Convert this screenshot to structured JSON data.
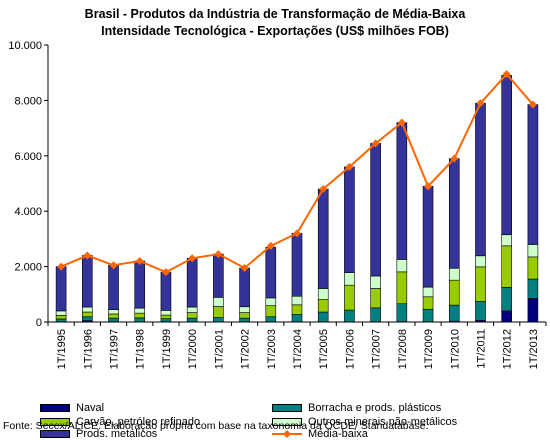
{
  "chart_data": {
    "type": "bar",
    "title": "Brasil - Produtos da Indústria de Transformação de Média-Baixa",
    "subtitle": "Intensidade Tecnológica - Exportações (US$ milhões FOB)",
    "categories": [
      "1T/1995",
      "1T/1996",
      "1T/1997",
      "1T/1998",
      "1T/1999",
      "1T/2000",
      "1T/2001",
      "1T/2002",
      "1T/2003",
      "1T/2004",
      "1T/2005",
      "1T/2006",
      "1T/2007",
      "1T/2008",
      "1T/2009",
      "1T/2010",
      "1T/2011",
      "1T/2012",
      "1T/2013"
    ],
    "ylim": [
      0,
      10000
    ],
    "yticks": [
      "0",
      "2.000",
      "4.000",
      "6.000",
      "8.000",
      "10.000"
    ],
    "yticks_values": [
      0,
      2000,
      4000,
      6000,
      8000,
      10000
    ],
    "grid": false,
    "legend_position": "bottom",
    "series": [
      {
        "name": "Naval",
        "color": "#000080",
        "kind": "bar",
        "values": [
          10,
          50,
          10,
          10,
          10,
          10,
          10,
          10,
          10,
          10,
          10,
          10,
          10,
          10,
          10,
          30,
          60,
          400,
          850
        ]
      },
      {
        "name": "Borracha e prods. plásticos",
        "color": "#008080",
        "kind": "bar",
        "values": [
          100,
          140,
          130,
          140,
          110,
          130,
          150,
          130,
          180,
          260,
          350,
          420,
          500,
          650,
          450,
          580,
          680,
          850,
          700
        ]
      },
      {
        "name": "Carvão, petróleo refinado",
        "color": "#99CC00",
        "kind": "bar",
        "values": [
          130,
          170,
          150,
          170,
          130,
          200,
          400,
          200,
          400,
          350,
          450,
          900,
          700,
          1150,
          450,
          900,
          1250,
          1500,
          800
        ]
      },
      {
        "name": "Outros minerais não-metálicos",
        "color": "#CCFFCC",
        "kind": "bar",
        "values": [
          160,
          180,
          160,
          180,
          170,
          200,
          330,
          210,
          280,
          310,
          400,
          450,
          450,
          450,
          350,
          430,
          400,
          400,
          450
        ]
      },
      {
        "name": "Prods. metálicos",
        "color": "#333399",
        "kind": "bar",
        "values": [
          1600,
          1860,
          1600,
          1700,
          1380,
          1760,
          1560,
          1400,
          1830,
          2270,
          3590,
          3820,
          4790,
          4940,
          3640,
          3960,
          5510,
          5750,
          5050
        ]
      },
      {
        "name": "Média-baixa",
        "color": "#FF6600",
        "kind": "line",
        "values": [
          2000,
          2400,
          2050,
          2200,
          1800,
          2300,
          2450,
          1950,
          2750,
          3200,
          4800,
          5600,
          6450,
          7200,
          4900,
          5900,
          7900,
          8950,
          7850
        ]
      }
    ]
  },
  "source": "Fonte: Secex/ALICE. Elaboração própria com base na taxonomia da OCDE/ Standatabase."
}
